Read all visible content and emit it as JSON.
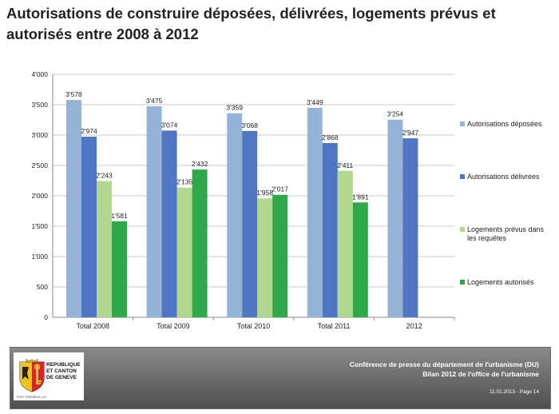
{
  "page": {
    "title": "Autorisations de construire déposées, délivrées, logements prévus et autorisés entre  2008 à 2012"
  },
  "chart_data": {
    "type": "bar",
    "categories": [
      "Total 2008",
      "Total 2009",
      "Total 2010",
      "Total 2011",
      "2012"
    ],
    "series": [
      {
        "name": "Autorisations déposées",
        "color": "#95b3d7",
        "values": [
          3578,
          3475,
          3359,
          3449,
          3254
        ],
        "labels": [
          "3'578",
          "3'475",
          "3'359",
          "3'449",
          "3'254"
        ]
      },
      {
        "name": "Autorisations délivrées",
        "color": "#4f76c2",
        "values": [
          2974,
          3074,
          3068,
          2868,
          2947
        ],
        "labels": [
          "2'974",
          "3'074",
          "3'068",
          "2'868",
          "2'947"
        ]
      },
      {
        "name": "Logements prévus dans les requêtes",
        "color": "#b2d88f",
        "values": [
          2243,
          2135,
          1958,
          2411,
          null
        ],
        "labels": [
          "2'243",
          "2'135",
          "1'958",
          "2'411",
          ""
        ]
      },
      {
        "name": "Logements autorisés",
        "color": "#2ea84a",
        "values": [
          1581,
          2432,
          2017,
          1891,
          null
        ],
        "labels": [
          "1'581",
          "2'432",
          "2'017",
          "1'891",
          ""
        ]
      }
    ],
    "ylim": [
      0,
      4000
    ],
    "yticks": [
      0,
      500,
      1000,
      1500,
      2000,
      2500,
      3000,
      3500,
      4000
    ],
    "ytick_labels": [
      "0",
      "500",
      "1'000",
      "1'500",
      "2'000",
      "2'500",
      "3'000",
      "3'500",
      "4'000"
    ],
    "grid": true,
    "legend_position": "right"
  },
  "legend": {
    "items": [
      {
        "label": "Autorisations déposées",
        "color": "#95b3d7"
      },
      {
        "label": "Autorisations délivrées",
        "color": "#4f76c2"
      },
      {
        "label": "Logements prévus dans les requêtes",
        "color": "#b2d88f"
      },
      {
        "label": "Logements autorisés",
        "color": "#2ea84a"
      }
    ]
  },
  "footer": {
    "logo_line1": "REPUBLIQUE",
    "logo_line2": "ET CANTON",
    "logo_line3": "DE GENEVE",
    "logo_motto": "POST TENEBRAS LUX",
    "line1": "Conférence de presse du département de l'urbanisme (DU)",
    "line2": "Bilan 2012 de l'office de l'urbanisme",
    "date_page": "11.01.2013 - Page 14"
  }
}
